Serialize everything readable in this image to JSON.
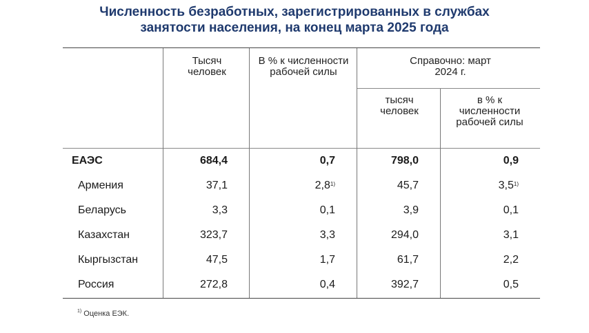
{
  "title": {
    "line1": "Численность безработных, зарегистрированных в службах",
    "line2": "занятости населения, на конец марта 2025 года"
  },
  "headers": {
    "col1": "Тысяч человек",
    "col2": "В % к численности рабочей силы",
    "ref_group": "Справочно: март 2024 г.",
    "col3": "тысяч человек",
    "col4": "в % к численности рабочей силы"
  },
  "rows": [
    {
      "name": "ЕАЭС",
      "v1": "684,4",
      "v2": "0,7",
      "v2_note": "",
      "v3": "798,0",
      "v4": "0,9",
      "v4_note": ""
    },
    {
      "name": "Армения",
      "v1": "37,1",
      "v2": "2,8",
      "v2_note": "1)",
      "v3": "45,7",
      "v4": "3,5",
      "v4_note": "1)"
    },
    {
      "name": "Беларусь",
      "v1": "3,3",
      "v2": "0,1",
      "v2_note": "",
      "v3": "3,9",
      "v4": "0,1",
      "v4_note": ""
    },
    {
      "name": "Казахстан",
      "v1": "323,7",
      "v2": "3,3",
      "v2_note": "",
      "v3": "294,0",
      "v4": "3,1",
      "v4_note": ""
    },
    {
      "name": "Кыргызстан",
      "v1": "47,5",
      "v2": "1,7",
      "v2_note": "",
      "v3": "61,7",
      "v4": "2,2",
      "v4_note": ""
    },
    {
      "name": "Россия",
      "v1": "272,8",
      "v2": "0,4",
      "v2_note": "",
      "v3": "392,7",
      "v4": "0,5",
      "v4_note": ""
    }
  ],
  "footnote": {
    "mark": "1)",
    "text": " Оценка ЕЭК."
  }
}
